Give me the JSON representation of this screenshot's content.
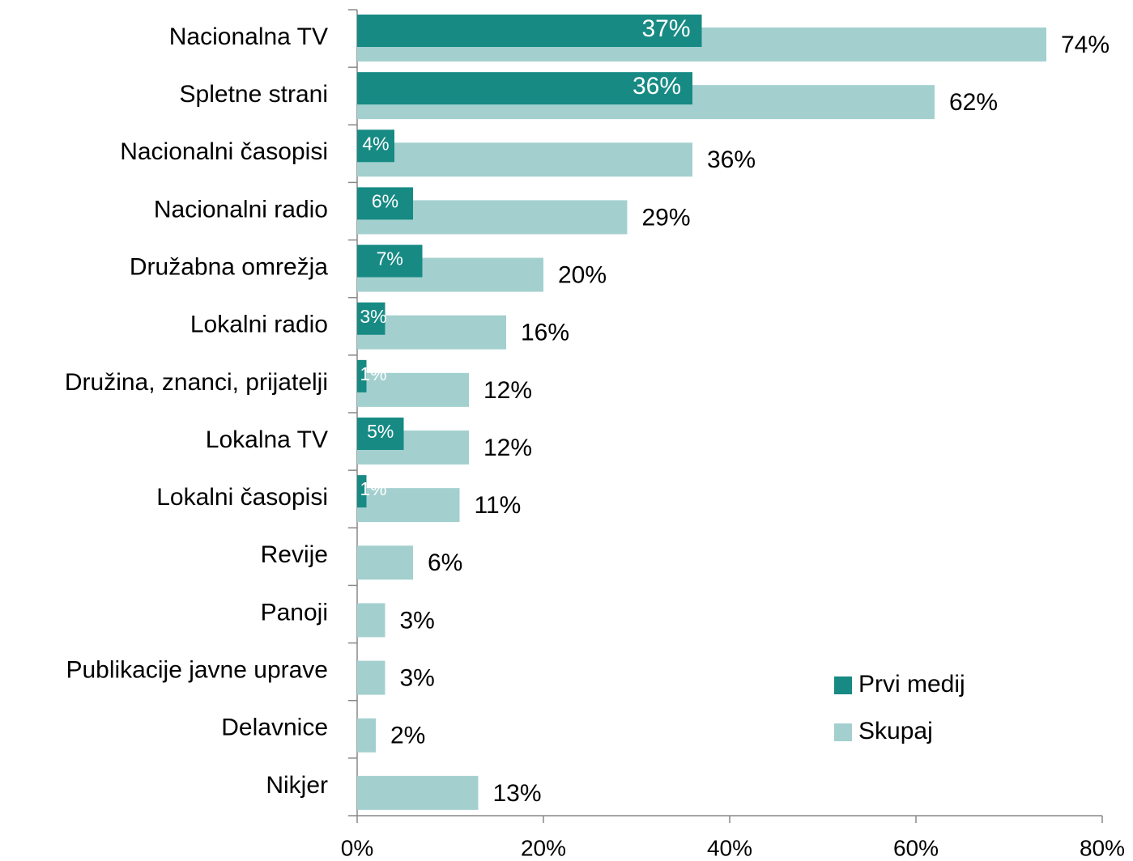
{
  "chart_data": {
    "type": "barh",
    "categories": [
      "Nacionalna TV",
      "Spletne strani",
      "Nacionalni časopisi",
      "Nacionalni radio",
      "Družabna omrežja",
      "Lokalni radio",
      "Družina, znanci, prijatelji",
      "Lokalna TV",
      "Lokalni časopisi",
      "Revije",
      "Panoji",
      "Publikacije javne uprave",
      "Delavnice",
      "Nikjer"
    ],
    "series": [
      {
        "name": "Prvi medij",
        "color": "#178a84",
        "values": [
          37,
          36,
          4,
          6,
          7,
          3,
          1,
          5,
          1,
          null,
          null,
          null,
          null,
          null
        ],
        "value_labels": [
          "37%",
          "36%",
          "4%",
          "6%",
          "7%",
          "3%",
          "1%",
          "5%",
          "1%",
          null,
          null,
          null,
          null,
          null
        ]
      },
      {
        "name": "Skupaj",
        "color": "#a3d0cf",
        "values": [
          74,
          62,
          36,
          29,
          20,
          16,
          12,
          12,
          11,
          6,
          3,
          3,
          2,
          13
        ],
        "value_labels": [
          "74%",
          "62%",
          "36%",
          "29%",
          "20%",
          "16%",
          "12%",
          "12%",
          "11%",
          "6%",
          "3%",
          "3%",
          "2%",
          "13%"
        ]
      }
    ],
    "xlim": [
      0,
      80
    ],
    "xticks": [
      {
        "value": 0,
        "label": "0%"
      },
      {
        "value": 20,
        "label": "20%"
      },
      {
        "value": 40,
        "label": "40%"
      },
      {
        "value": 60,
        "label": "60%"
      },
      {
        "value": 80,
        "label": "80%"
      }
    ],
    "legend": "lower right"
  }
}
